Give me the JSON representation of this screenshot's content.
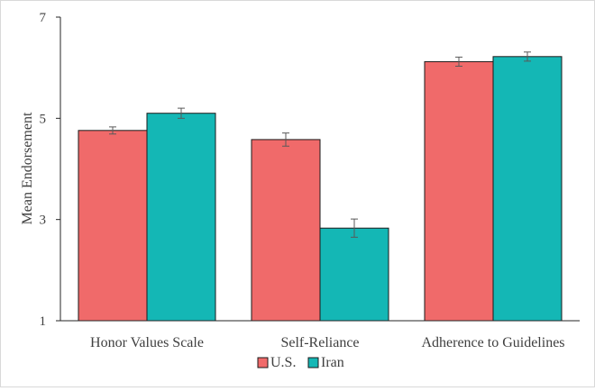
{
  "chart_data": {
    "type": "bar",
    "title": "",
    "xlabel": "",
    "ylabel": "Mean Endorsement",
    "ylim": [
      1,
      7
    ],
    "yticks": [
      1,
      3,
      5,
      7
    ],
    "categories": [
      "Honor Values Scale",
      "Self-Reliance",
      "Adherence to Guidelines"
    ],
    "series": [
      {
        "name": "U.S.",
        "color": "#f06a6a",
        "values": [
          4.76,
          4.58,
          6.12
        ],
        "errors": [
          0.07,
          0.13,
          0.09
        ]
      },
      {
        "name": "Iran",
        "color": "#14b7b5",
        "values": [
          5.1,
          2.83,
          6.22
        ],
        "errors": [
          0.1,
          0.18,
          0.09
        ]
      }
    ],
    "grid": false,
    "legend_position": "bottom-center"
  }
}
